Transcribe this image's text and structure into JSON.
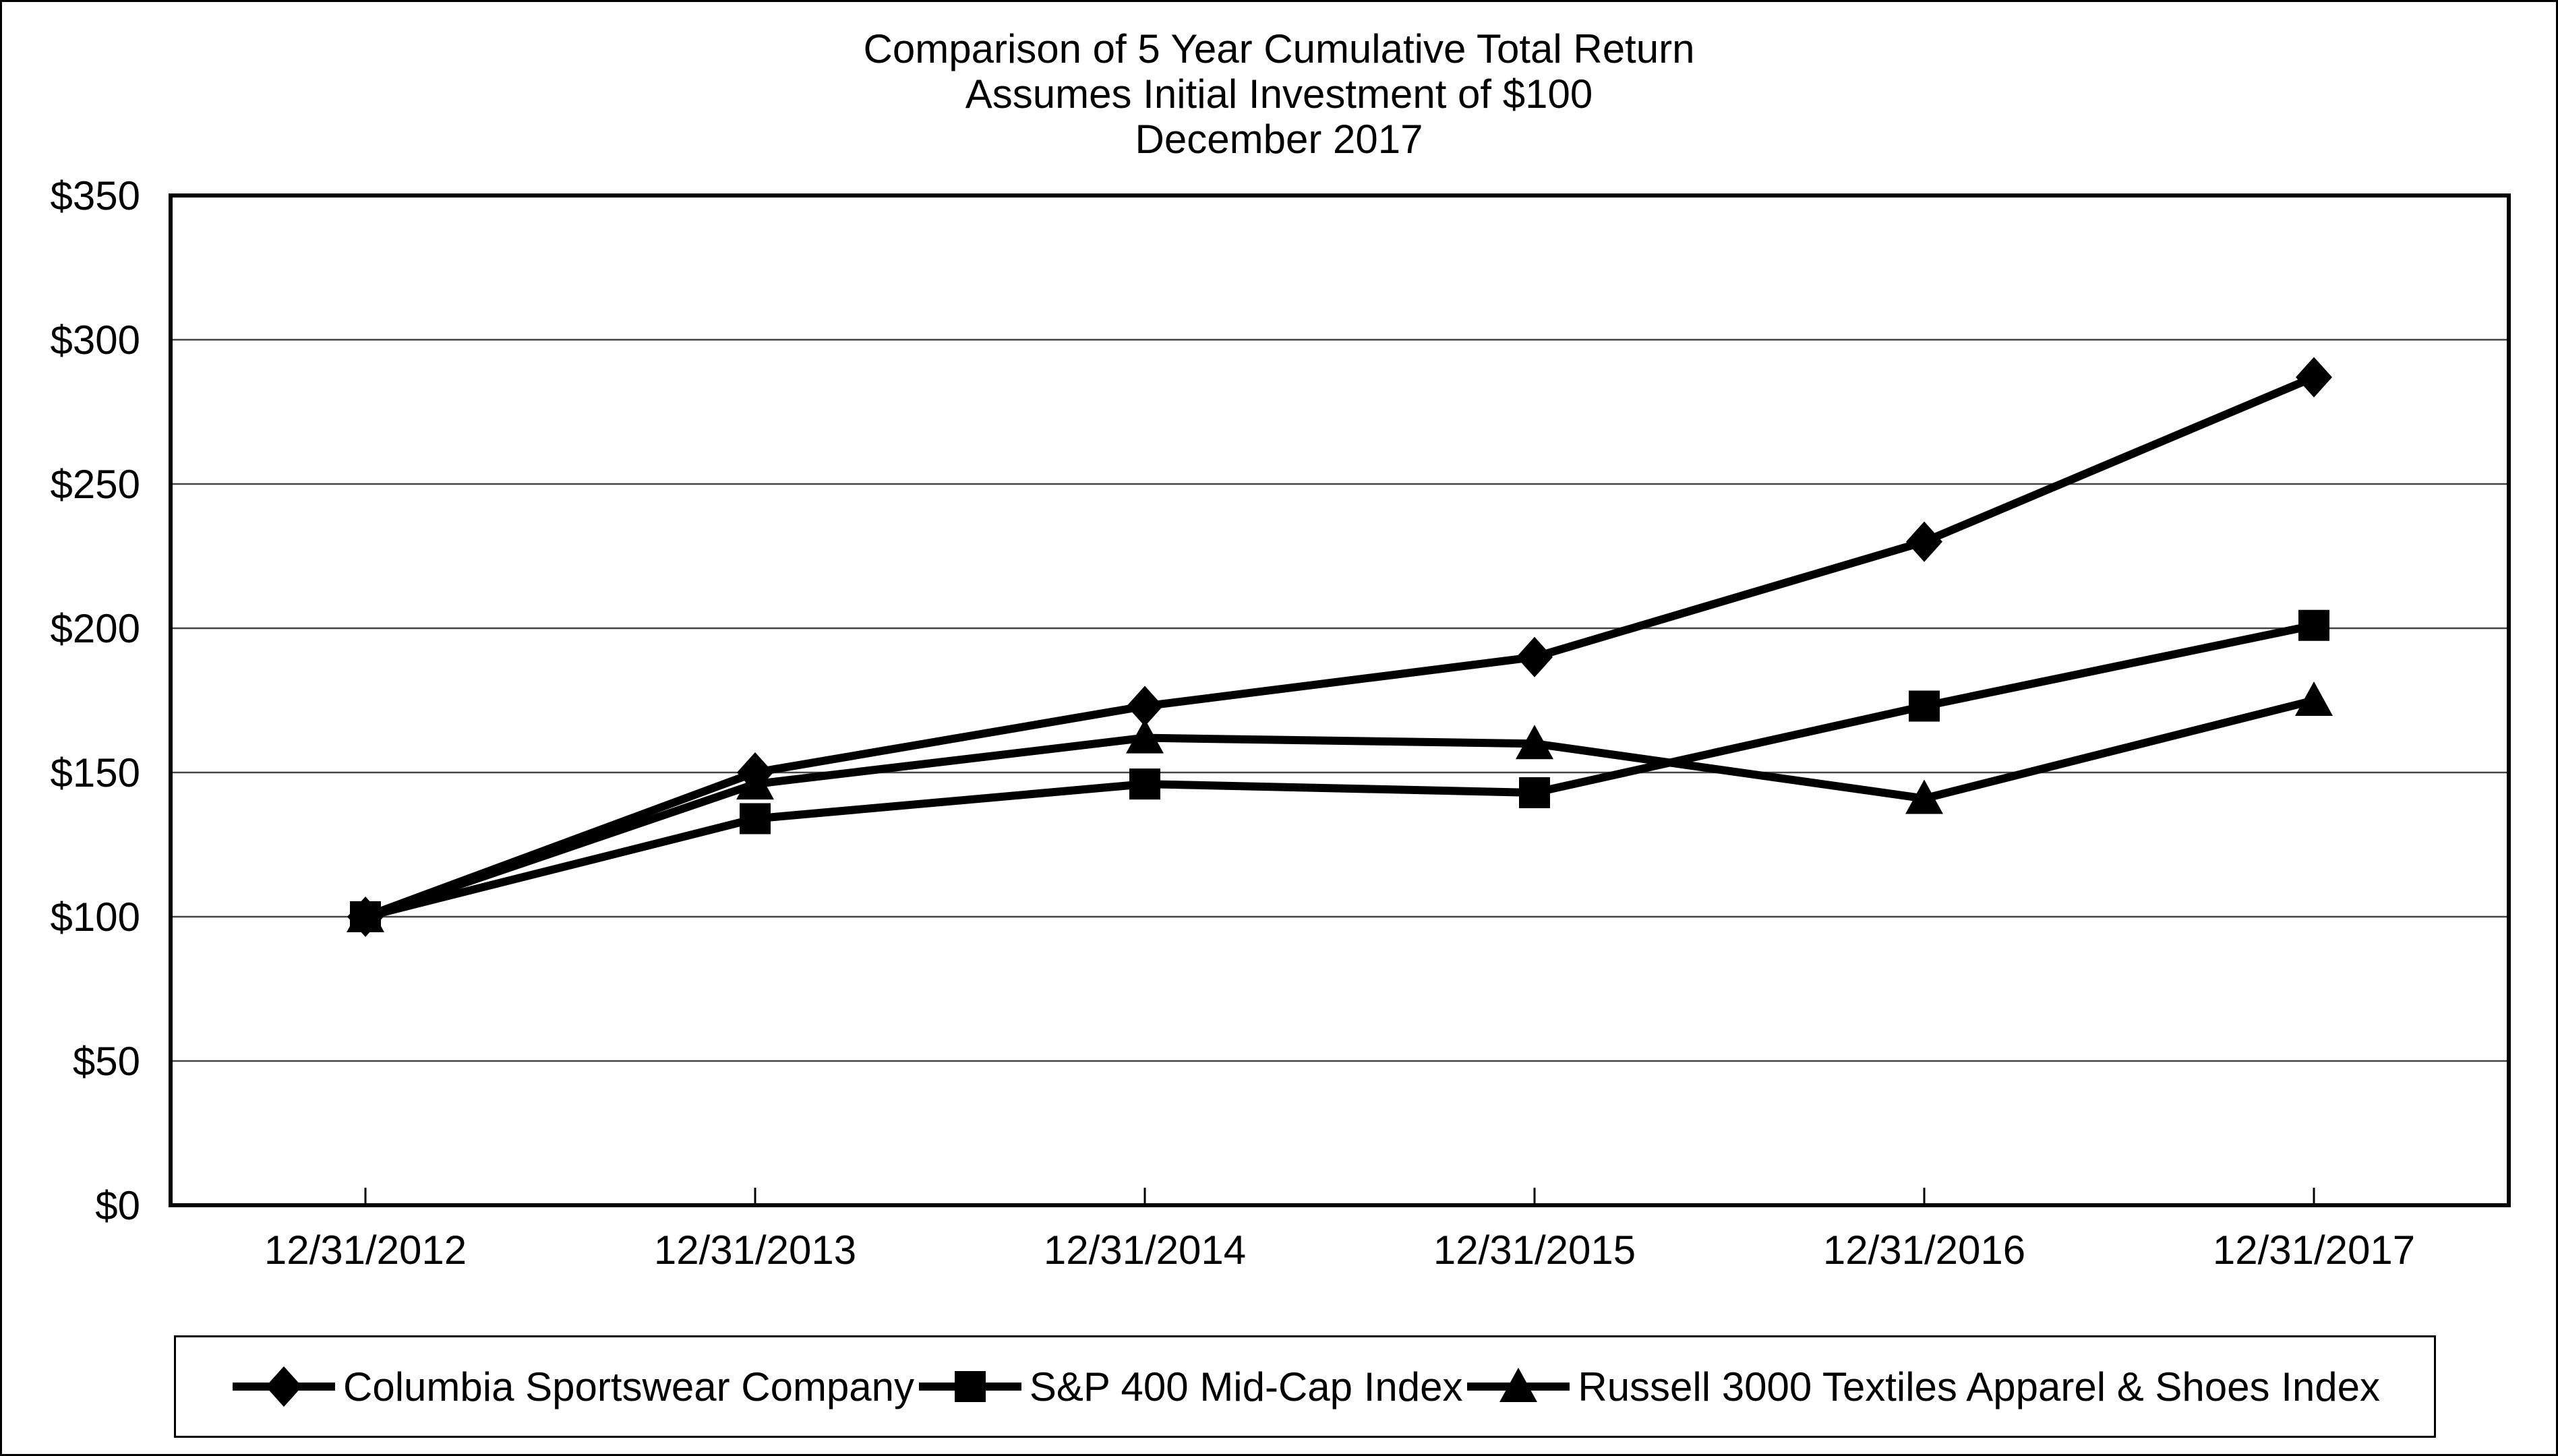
{
  "chart_data": {
    "type": "line",
    "title": "Comparison of 5 Year Cumulative Total Return",
    "subtitle": "Assumes Initial Investment of $100",
    "date_label": "December 2017",
    "categories": [
      "12/31/2012",
      "12/31/2013",
      "12/31/2014",
      "12/31/2015",
      "12/31/2016",
      "12/31/2017"
    ],
    "series": [
      {
        "name": "Columbia Sportswear Company",
        "marker": "diamond",
        "values": [
          100,
          150,
          173,
          190,
          230,
          287
        ]
      },
      {
        "name": "S&P 400 Mid-Cap Index",
        "marker": "square",
        "values": [
          100,
          134,
          146,
          143,
          173,
          201
        ]
      },
      {
        "name": "Russell 3000 Textiles Apparel & Shoes Index",
        "marker": "triangle",
        "values": [
          100,
          146,
          162,
          160,
          141,
          175
        ]
      }
    ],
    "y_axis": {
      "min": 0,
      "max": 350,
      "step": 50,
      "tick_prefix": "$",
      "tick_labels": [
        "$0",
        "$50",
        "$100",
        "$150",
        "$200",
        "$250",
        "$300",
        "$350"
      ]
    },
    "grid": true,
    "legend_position": "bottom",
    "line_color": "#000000",
    "marker_color": "#000000",
    "grid_color": "#444444",
    "frame_color": "#000000"
  }
}
